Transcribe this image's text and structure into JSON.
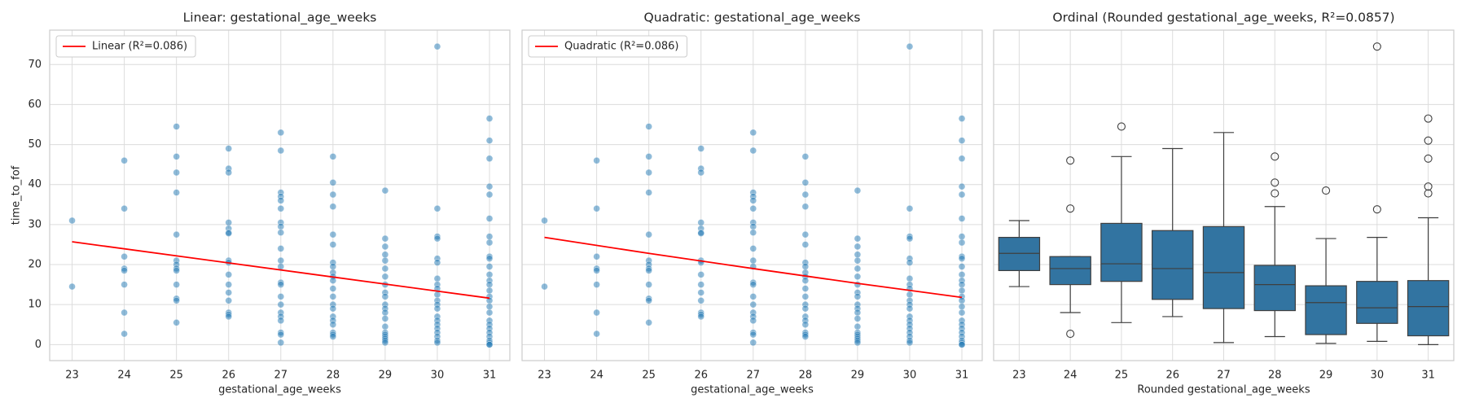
{
  "chart_data": [
    {
      "type": "scatter",
      "title": "Linear: gestational_age_weeks",
      "xlabel": "gestational_age_weeks",
      "ylabel": "time_to_fof",
      "x": [
        23,
        23,
        24,
        24,
        24,
        24,
        24,
        24,
        24,
        24,
        25,
        25,
        25,
        25,
        25,
        25,
        25,
        25,
        25,
        25,
        25,
        25,
        25,
        26,
        26,
        26,
        26,
        26,
        26,
        26,
        26,
        26,
        26,
        26,
        26,
        26,
        26,
        26,
        26,
        27,
        27,
        27,
        27,
        27,
        27,
        27,
        27,
        27,
        27,
        27,
        27,
        27,
        27,
        27,
        27,
        27,
        27,
        27,
        27,
        27,
        27,
        28,
        28,
        28,
        28,
        28,
        28,
        28,
        28,
        28,
        28,
        28,
        28,
        28,
        28,
        28,
        28,
        28,
        28,
        28,
        28,
        28,
        29,
        29,
        29,
        29,
        29,
        29,
        29,
        29,
        29,
        29,
        29,
        29,
        29,
        29,
        29,
        29,
        29,
        29,
        29,
        29,
        29,
        30,
        30,
        30,
        30,
        30,
        30,
        30,
        30,
        30,
        30,
        30,
        30,
        30,
        30,
        30,
        30,
        30,
        30,
        30,
        30,
        30,
        31,
        31,
        31,
        31,
        31,
        31,
        31,
        31,
        31,
        31,
        31,
        31,
        31,
        31,
        31,
        31,
        31,
        31,
        31,
        31,
        31,
        31,
        31,
        31,
        31,
        31,
        31,
        31
      ],
      "values": [
        31,
        14.5,
        46,
        34,
        22,
        19,
        18.5,
        15,
        8,
        2.7,
        54.5,
        47,
        43,
        38,
        27.5,
        21,
        20,
        19,
        18.5,
        15,
        11.5,
        11,
        5.5,
        49,
        44,
        43,
        30.5,
        29,
        28,
        27.8,
        21,
        20.5,
        17.5,
        15,
        13,
        11,
        8,
        7.5,
        7,
        53,
        48.5,
        38,
        37,
        36,
        34,
        30.5,
        29.5,
        28,
        24,
        21,
        19.5,
        15.5,
        15,
        12,
        10,
        8,
        7,
        6,
        3,
        2.5,
        0.5,
        47,
        40.5,
        37.5,
        34.5,
        27.5,
        25,
        20.5,
        19.5,
        18,
        17,
        16,
        14,
        12,
        10,
        9,
        7,
        6,
        5,
        3,
        2.5,
        2,
        38.5,
        26.5,
        24.5,
        22.5,
        21,
        19,
        17,
        15,
        13,
        12,
        10,
        9,
        8,
        6.5,
        4.5,
        3,
        2.5,
        2,
        1.5,
        1,
        0.5,
        74.5,
        34,
        27,
        26.5,
        21.5,
        20.5,
        16.5,
        15,
        14,
        12.5,
        11,
        10,
        9,
        7,
        6,
        5,
        4,
        3,
        2,
        1,
        0.5,
        56.5,
        51,
        46.5,
        39.5,
        37.5,
        31.5,
        27,
        25.5,
        22,
        21.5,
        19.5,
        17.5,
        16,
        15,
        13.5,
        12,
        11,
        9.5,
        8,
        6,
        5,
        4,
        3,
        2,
        1,
        0.5,
        0,
        0
      ],
      "color": "#1f77b4",
      "fit": {
        "name": "Linear (R²=0.086)",
        "color": "#ff0000",
        "x": [
          23,
          31
        ],
        "values": [
          25.7,
          11.6
        ]
      },
      "xlim": [
        22.57,
        31.39
      ],
      "ylim": [
        -4,
        78.6
      ],
      "xticks": [
        23,
        24,
        25,
        26,
        27,
        28,
        29,
        30,
        31
      ],
      "yticks": [
        0,
        10,
        20,
        30,
        40,
        50,
        60,
        70
      ],
      "show_ytick_labels": true,
      "grid": true,
      "legend": "upper left"
    },
    {
      "type": "scatter",
      "title": "Quadratic: gestational_age_weeks",
      "xlabel": "gestational_age_weeks",
      "x": [
        23,
        23,
        24,
        24,
        24,
        24,
        24,
        24,
        24,
        24,
        25,
        25,
        25,
        25,
        25,
        25,
        25,
        25,
        25,
        25,
        25,
        25,
        25,
        26,
        26,
        26,
        26,
        26,
        26,
        26,
        26,
        26,
        26,
        26,
        26,
        26,
        26,
        26,
        26,
        27,
        27,
        27,
        27,
        27,
        27,
        27,
        27,
        27,
        27,
        27,
        27,
        27,
        27,
        27,
        27,
        27,
        27,
        27,
        27,
        27,
        27,
        28,
        28,
        28,
        28,
        28,
        28,
        28,
        28,
        28,
        28,
        28,
        28,
        28,
        28,
        28,
        28,
        28,
        28,
        28,
        28,
        28,
        29,
        29,
        29,
        29,
        29,
        29,
        29,
        29,
        29,
        29,
        29,
        29,
        29,
        29,
        29,
        29,
        29,
        29,
        29,
        29,
        29,
        30,
        30,
        30,
        30,
        30,
        30,
        30,
        30,
        30,
        30,
        30,
        30,
        30,
        30,
        30,
        30,
        30,
        30,
        30,
        30,
        30,
        31,
        31,
        31,
        31,
        31,
        31,
        31,
        31,
        31,
        31,
        31,
        31,
        31,
        31,
        31,
        31,
        31,
        31,
        31,
        31,
        31,
        31,
        31,
        31,
        31,
        31,
        31,
        31
      ],
      "values": [
        31,
        14.5,
        46,
        34,
        22,
        19,
        18.5,
        15,
        8,
        2.7,
        54.5,
        47,
        43,
        38,
        27.5,
        21,
        20,
        19,
        18.5,
        15,
        11.5,
        11,
        5.5,
        49,
        44,
        43,
        30.5,
        29,
        28,
        27.8,
        21,
        20.5,
        17.5,
        15,
        13,
        11,
        8,
        7.5,
        7,
        53,
        48.5,
        38,
        37,
        36,
        34,
        30.5,
        29.5,
        28,
        24,
        21,
        19.5,
        15.5,
        15,
        12,
        10,
        8,
        7,
        6,
        3,
        2.5,
        0.5,
        47,
        40.5,
        37.5,
        34.5,
        27.5,
        25,
        20.5,
        19.5,
        18,
        17,
        16,
        14,
        12,
        10,
        9,
        7,
        6,
        5,
        3,
        2.5,
        2,
        38.5,
        26.5,
        24.5,
        22.5,
        21,
        19,
        17,
        15,
        13,
        12,
        10,
        9,
        8,
        6.5,
        4.5,
        3,
        2.5,
        2,
        1.5,
        1,
        0.5,
        74.5,
        34,
        27,
        26.5,
        21.5,
        20.5,
        16.5,
        15,
        14,
        12.5,
        11,
        10,
        9,
        7,
        6,
        5,
        4,
        3,
        2,
        1,
        0.5,
        56.5,
        51,
        46.5,
        39.5,
        37.5,
        31.5,
        27,
        25.5,
        22,
        21.5,
        19.5,
        17.5,
        16,
        15,
        13.5,
        12,
        11,
        9.5,
        8,
        6,
        5,
        4,
        3,
        2,
        1,
        0.5,
        0,
        0
      ],
      "color": "#1f77b4",
      "fit": {
        "name": "Quadratic (R²=0.086)",
        "color": "#ff0000",
        "x": [
          23,
          25,
          27,
          29,
          31
        ],
        "values": [
          26.8,
          22.8,
          19.0,
          15.3,
          11.8
        ]
      },
      "xlim": [
        22.57,
        31.39
      ],
      "ylim": [
        -4,
        78.6
      ],
      "xticks": [
        23,
        24,
        25,
        26,
        27,
        28,
        29,
        30,
        31
      ],
      "yticks": [
        0,
        10,
        20,
        30,
        40,
        50,
        60,
        70
      ],
      "show_ytick_labels": false,
      "grid": true,
      "legend": "upper left"
    },
    {
      "type": "box",
      "title": "Ordinal (Rounded gestational_age_weeks, R²=0.0857)",
      "xlabel": "Rounded gestational_age_weeks",
      "categories": [
        "23",
        "24",
        "25",
        "26",
        "27",
        "28",
        "29",
        "30",
        "31"
      ],
      "whislo": [
        14.5,
        8,
        5.5,
        7,
        0.5,
        2,
        0.3,
        0.8,
        0
      ],
      "q1": [
        18.5,
        15,
        15.8,
        11.3,
        9,
        8.5,
        2.5,
        5.3,
        2.2
      ],
      "med": [
        22.8,
        19,
        20.2,
        19,
        18,
        15,
        10.5,
        9.2,
        9.5
      ],
      "q3": [
        26.8,
        22,
        30.3,
        28.5,
        29.5,
        19.8,
        14.7,
        15.8,
        16
      ],
      "whishi": [
        31,
        22,
        47,
        49,
        53,
        34.5,
        26.5,
        26.8,
        31.7
      ],
      "outliers": [
        [],
        [
          46,
          34,
          2.7
        ],
        [
          54.5
        ],
        [],
        [],
        [
          47,
          40.5,
          37.8
        ],
        [
          38.5
        ],
        [
          74.5,
          33.8
        ],
        [
          56.5,
          51,
          46.5,
          39.5,
          37.8
        ]
      ],
      "color": "#3274a1",
      "ylim": [
        -4,
        78.6
      ],
      "yticks": [
        0,
        10,
        20,
        30,
        40,
        50,
        60,
        70
      ],
      "show_ytick_labels": false,
      "grid": true
    }
  ]
}
